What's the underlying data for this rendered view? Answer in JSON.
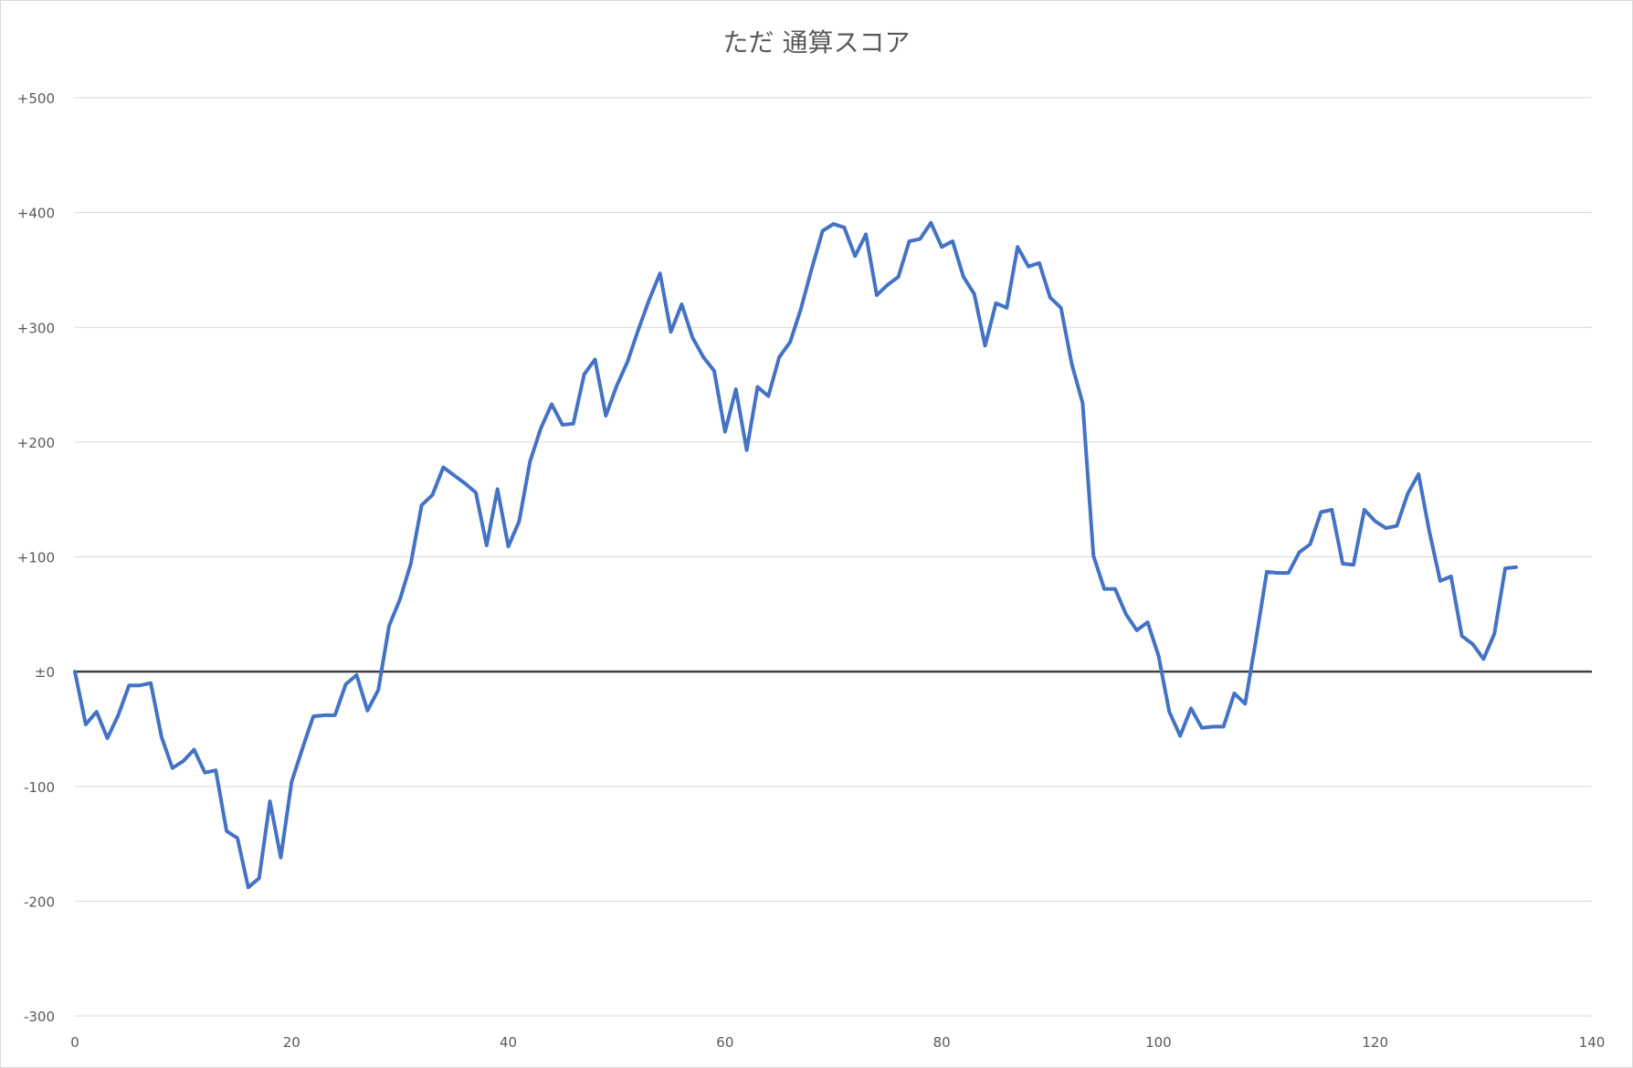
{
  "chart_data": {
    "type": "line",
    "title": "ただ 通算スコア",
    "xlabel": "",
    "ylabel": "",
    "xlim": [
      0,
      140
    ],
    "ylim": [
      -300,
      500
    ],
    "x_ticks": [
      0,
      20,
      40,
      60,
      80,
      100,
      120,
      140
    ],
    "y_ticks": [
      {
        "value": 500,
        "label": "+500"
      },
      {
        "value": 400,
        "label": "+400"
      },
      {
        "value": 300,
        "label": "+300"
      },
      {
        "value": 200,
        "label": "+200"
      },
      {
        "value": 100,
        "label": "+100"
      },
      {
        "value": 0,
        "label": "±0"
      },
      {
        "value": -100,
        "label": "-100"
      },
      {
        "value": -200,
        "label": "-200"
      },
      {
        "value": -300,
        "label": "-300"
      }
    ],
    "grid": true,
    "legend": "none",
    "colors": {
      "series": "#4472c4",
      "grid": "#d9d9d9",
      "zero_line": "#404040",
      "text": "#595959"
    },
    "series": [
      {
        "x": [
          0,
          1,
          2,
          3,
          4,
          5,
          6,
          7,
          8,
          9,
          10,
          11,
          12,
          13,
          14,
          15,
          16,
          17,
          18,
          19,
          20,
          21,
          22,
          23,
          24,
          25,
          26,
          27,
          28,
          29,
          30,
          31,
          32,
          33,
          34,
          35,
          36,
          37,
          38,
          39,
          40,
          41,
          42,
          43,
          44,
          45,
          46,
          47,
          48,
          49,
          50,
          51,
          52,
          53,
          54,
          55,
          56,
          57,
          58,
          59,
          60,
          61,
          62,
          63,
          64,
          65,
          66,
          67,
          68,
          69,
          70,
          71,
          72,
          73,
          74,
          75,
          76,
          77,
          78,
          79,
          80,
          81,
          82,
          83,
          84,
          85,
          86,
          87,
          88,
          89,
          90,
          91,
          92,
          93,
          94,
          95,
          96,
          97,
          98,
          99,
          100,
          101,
          102,
          103,
          104,
          105,
          106,
          107,
          108,
          109,
          110,
          111,
          112,
          113,
          114,
          115,
          116,
          117,
          118,
          119,
          120,
          121,
          122,
          123,
          124,
          125,
          126,
          127,
          128,
          129,
          130,
          131,
          132,
          133
        ],
        "values": [
          0,
          -46,
          -35,
          -58,
          -38,
          -12,
          -12,
          -10,
          -57,
          -84,
          -78,
          -68,
          -88,
          -86,
          -139,
          -145,
          -188,
          -180,
          -113,
          -162,
          -96,
          -67,
          -39,
          -38,
          -38,
          -11,
          -3,
          -34,
          -16,
          40,
          63,
          94,
          145,
          154,
          178,
          171,
          164,
          156,
          110,
          159,
          109,
          131,
          183,
          212,
          233,
          215,
          216,
          259,
          272,
          223,
          249,
          270,
          298,
          324,
          347,
          296,
          320,
          291,
          274,
          262,
          209,
          246,
          193,
          248,
          240,
          274,
          287,
          316,
          351,
          384,
          390,
          387,
          362,
          381,
          328,
          337,
          344,
          375,
          377,
          391,
          370,
          375,
          344,
          329,
          284,
          321,
          317,
          370,
          353,
          356,
          326,
          317,
          268,
          234,
          101,
          72,
          72,
          50,
          36,
          43,
          14,
          -35,
          -56,
          -32,
          -49,
          -48,
          -48,
          -19,
          -28,
          28,
          87,
          86,
          86,
          104,
          111,
          139,
          141,
          94,
          93,
          141,
          131,
          125,
          127,
          155,
          172,
          122,
          79,
          83,
          31,
          24,
          11,
          33,
          90,
          91
        ]
      }
    ]
  }
}
